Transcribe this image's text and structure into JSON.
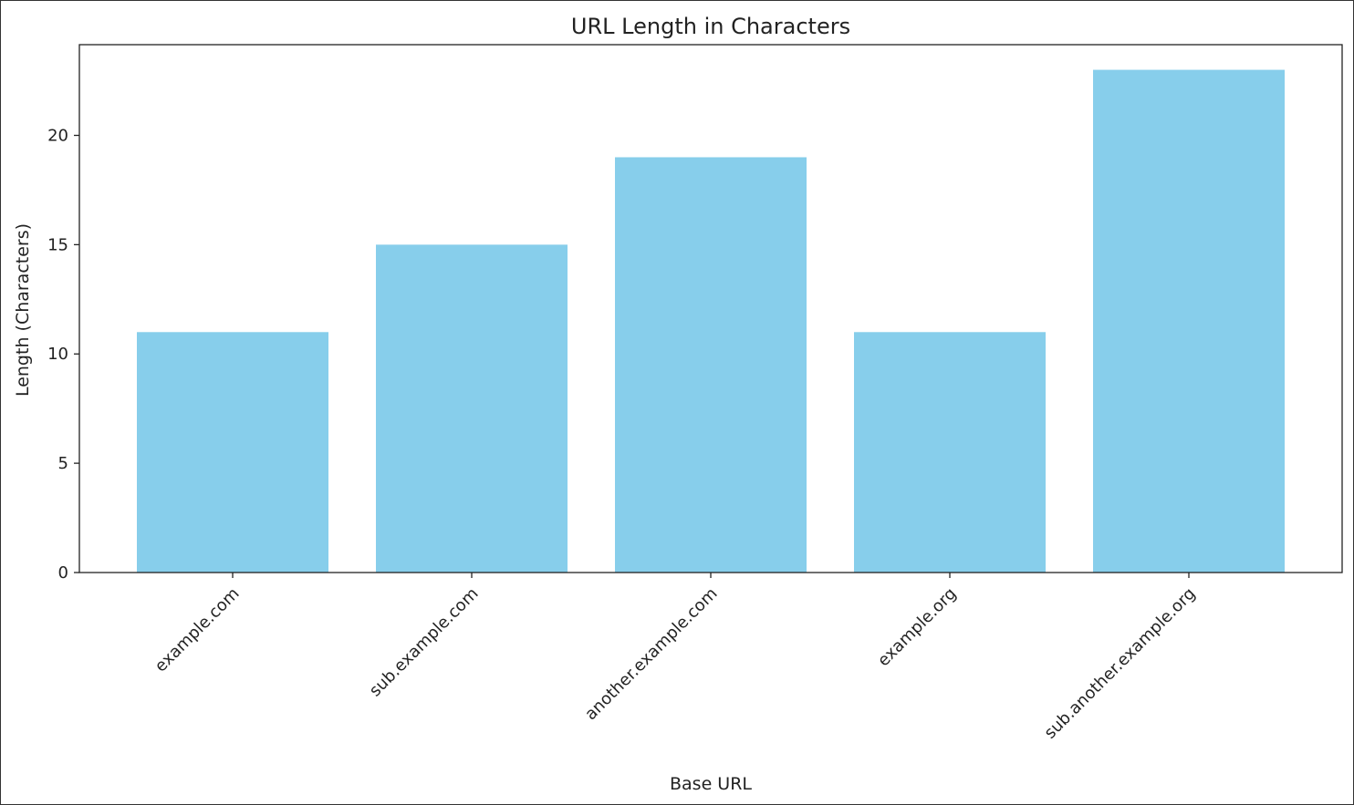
{
  "chart_data": {
    "type": "bar",
    "title": "URL Length in Characters",
    "xlabel": "Base URL",
    "ylabel": "Length (Characters)",
    "categories": [
      "example.com",
      "sub.example.com",
      "another.example.com",
      "example.org",
      "sub.another.example.org"
    ],
    "values": [
      11,
      15,
      19,
      11,
      23
    ],
    "ylim": [
      0,
      24.15
    ],
    "yticks": [
      0,
      5,
      10,
      15,
      20
    ],
    "bar_color": "#87CEEB",
    "grid": false,
    "legend": "none"
  }
}
